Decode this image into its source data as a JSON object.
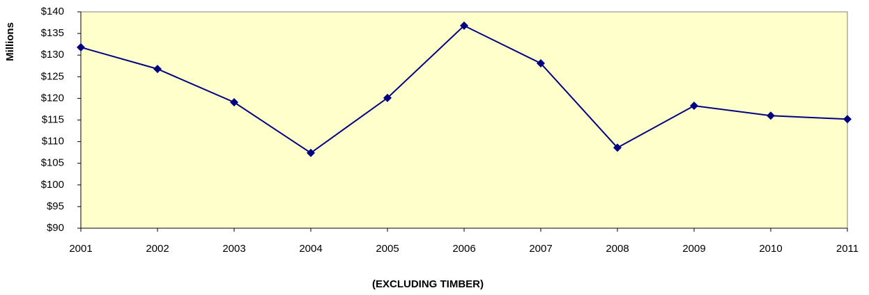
{
  "chart_data": {
    "type": "line",
    "y_label": "Millions",
    "x_label": "(EXCLUDING TIMBER)",
    "categories": [
      "2001",
      "2002",
      "2003",
      "2004",
      "2005",
      "2006",
      "2007",
      "2008",
      "2009",
      "2010",
      "2011"
    ],
    "series": [
      {
        "color": "#000080",
        "values": [
          131.8,
          126.8,
          119.1,
          107.4,
          120.1,
          136.8,
          128.1,
          108.6,
          118.3,
          116.0,
          115.2
        ]
      }
    ],
    "ylim": [
      90,
      140
    ],
    "yticks": [
      {
        "value": 90,
        "label": "$90"
      },
      {
        "value": 95,
        "label": "$95"
      },
      {
        "value": 100,
        "label": "$100"
      },
      {
        "value": 105,
        "label": "$105"
      },
      {
        "value": 110,
        "label": "$110"
      },
      {
        "value": 115,
        "label": "$115"
      },
      {
        "value": 120,
        "label": "$120"
      },
      {
        "value": 125,
        "label": "$125"
      },
      {
        "value": 130,
        "label": "$130"
      },
      {
        "value": 135,
        "label": "$135"
      },
      {
        "value": 140,
        "label": "$140"
      }
    ],
    "plot_background": "#ffffcc",
    "grid": false
  }
}
